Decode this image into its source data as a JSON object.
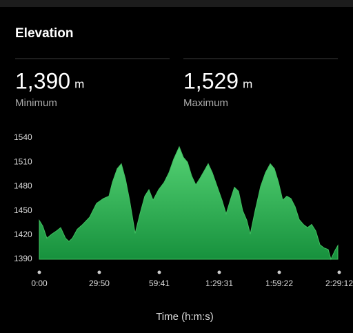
{
  "header": {
    "title": "Elevation"
  },
  "stats": [
    {
      "value": "1,390",
      "unit": "m",
      "label": "Minimum"
    },
    {
      "value": "1,529",
      "unit": "m",
      "label": "Maximum"
    }
  ],
  "chart_data": {
    "type": "area",
    "x_label": "Time (h:m:s)",
    "color": "#3fbf5f",
    "x": [
      0,
      103,
      226,
      370,
      514,
      638,
      782,
      885,
      988,
      1132,
      1297,
      1503,
      1708,
      1914,
      2079,
      2182,
      2326,
      2449,
      2573,
      2696,
      2861,
      3005,
      3149,
      3272,
      3396,
      3560,
      3725,
      3869,
      4013,
      4178,
      4301,
      4425,
      4548,
      4672,
      4795,
      4919,
      5042,
      5165,
      5310,
      5454,
      5577,
      5701,
      5824,
      5948,
      6071,
      6195,
      6297,
      6441,
      6606,
      6750,
      6894,
      7018,
      7141,
      7265,
      7388,
      7512,
      7635,
      7759,
      7882,
      8006,
      8129,
      8253,
      8376,
      8500,
      8623,
      8705,
      8829,
      8911
    ],
    "values": [
      1438,
      1431,
      1416,
      1421,
      1425,
      1429,
      1416,
      1412,
      1416,
      1427,
      1433,
      1442,
      1459,
      1465,
      1468,
      1485,
      1502,
      1508,
      1489,
      1463,
      1422,
      1446,
      1468,
      1476,
      1463,
      1476,
      1485,
      1497,
      1514,
      1529,
      1516,
      1510,
      1493,
      1482,
      1490,
      1499,
      1508,
      1497,
      1480,
      1463,
      1446,
      1463,
      1479,
      1474,
      1450,
      1438,
      1421,
      1450,
      1480,
      1497,
      1508,
      1502,
      1485,
      1463,
      1468,
      1465,
      1455,
      1439,
      1433,
      1429,
      1433,
      1425,
      1408,
      1404,
      1402,
      1390,
      1401,
      1407
    ],
    "xlim": [
      0,
      8952
    ],
    "xticks": [
      {
        "value": 0,
        "label": "0:00"
      },
      {
        "value": 1790,
        "label": "29:50"
      },
      {
        "value": 3581,
        "label": "59:41"
      },
      {
        "value": 5371,
        "label": "1:29:31"
      },
      {
        "value": 7162,
        "label": "1:59:22"
      },
      {
        "value": 8952,
        "label": "2:29:12"
      }
    ],
    "ylim": [
      1390,
      1540
    ],
    "yticks": [
      1390,
      1420,
      1450,
      1480,
      1510,
      1540
    ]
  }
}
